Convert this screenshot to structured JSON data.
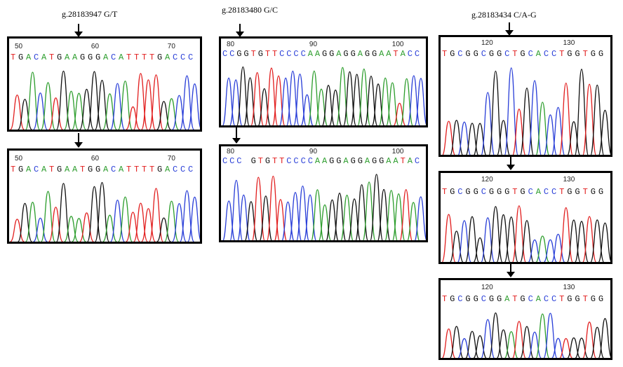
{
  "colors": {
    "A": "#2e9e2e",
    "C": "#2a3fd8",
    "G": "#111111",
    "T": "#e22020"
  },
  "figure": {
    "labels": {
      "variant1": "g.28183947 G/T",
      "variant2": "g.28183480 G/C",
      "variant3": "g.28183434 C/A-G"
    },
    "panels": [
      {
        "id": "p1",
        "ticks": [
          "50",
          "60",
          "70"
        ],
        "sequence": "TGACATGAAGGGACATTTTGACCC",
        "peak_colors": "TGACATGAAGGGACATTTTGACCC"
      },
      {
        "id": "p2",
        "ticks": [
          "50",
          "60",
          "70"
        ],
        "sequence": "TGACATGAATGGACATTTTGACCC",
        "peak_colors": "TGACATGAATGGACATTTTGACCC"
      },
      {
        "id": "p3",
        "ticks": [
          "80",
          "90",
          "100"
        ],
        "sequence": "CCGGTGTTCCCCAAGGAGGAGGAATACC",
        "peak_colors": "CCGGTGTTCCCCAAGGAGGAGGAATACC"
      },
      {
        "id": "p4",
        "ticks": [
          "80",
          "90",
          "100"
        ],
        "sequence": "CCC GTGTTCCCCAAGGAGGAGGAATAC",
        "peak_colors": "CCCGTGTTCCCCAAGGAGGAGGAATAC"
      },
      {
        "id": "p5",
        "ticks": [
          "120",
          "130"
        ],
        "sequence": "TGCGGCGGCTGCACCTGGTGG",
        "peak_colors": "TGCGGCGGCTGCACCTGGTGG"
      },
      {
        "id": "p6",
        "ticks": [
          "120",
          "130"
        ],
        "sequence": "TGCGGCGGGTGCACCTGGTGG",
        "peak_colors": "TGCGGCGGGTGCACCTGGTGG"
      },
      {
        "id": "p7",
        "ticks": [
          "120",
          "130"
        ],
        "sequence": "TGCGGCGGATGCACCTGGTGG",
        "peak_colors": "TGCGGCGGATGCACCTGGTGG"
      }
    ]
  }
}
